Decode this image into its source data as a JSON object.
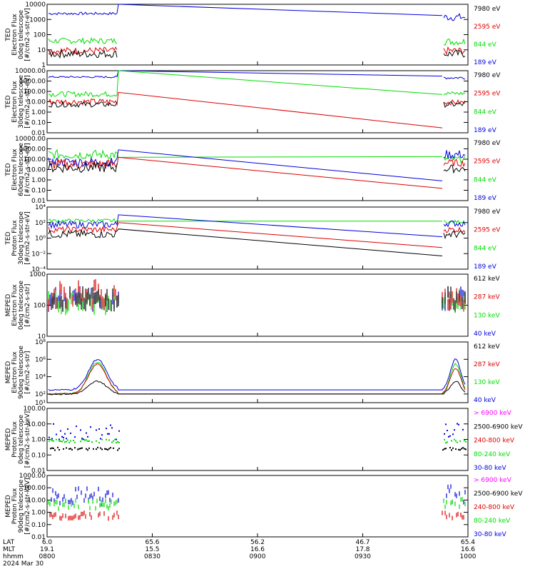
{
  "colors": {
    "black": "#000000",
    "red": "#dd0000",
    "green": "#00dd00",
    "blue": "#0000dd",
    "magenta": "#ff00ff"
  },
  "chart_data": [
    {
      "type": "line",
      "scale": "log",
      "ylabel_lines": [
        "TED",
        "Electron Flux",
        "0deg telescope",
        "[#/cm2-s-str-eV]"
      ],
      "ytick_labels": [
        "10000",
        "1000",
        "100",
        "10",
        "1"
      ],
      "ytick_values": [
        10000,
        1000,
        100,
        10,
        1
      ],
      "ylim": [
        1,
        10000
      ],
      "legend": [
        {
          "text": "7980 eV",
          "color": "black"
        },
        {
          "text": "2595 eV",
          "color": "red"
        },
        {
          "text": "844 eV",
          "color": "green"
        },
        {
          "text": "189 eV",
          "color": "blue"
        }
      ],
      "series": [
        {
          "color": "blue",
          "start": [
            2000,
            3000
          ],
          "jump": 10000,
          "slope_end": 1800,
          "end": [
            800,
            2500
          ],
          "noise": 0.5
        },
        {
          "color": "green",
          "start": [
            25,
            60
          ],
          "jump": null,
          "end": [
            20,
            60
          ],
          "noise": 0.6
        },
        {
          "color": "red",
          "start": [
            5,
            15
          ],
          "jump": null,
          "end": [
            5,
            15
          ],
          "noise": 0.5
        },
        {
          "color": "black",
          "start": [
            3,
            10
          ],
          "jump": null,
          "end": [
            3,
            10
          ],
          "noise": 0.5
        }
      ]
    },
    {
      "type": "line",
      "scale": "log",
      "ylabel_lines": [
        "TED",
        "Electron Flux",
        "30deg telescope",
        "[#/cm2-s-str-eV]"
      ],
      "ytick_labels": [
        "10000.00",
        "1000.00",
        "100.00",
        "10.00",
        "1.00",
        "0.10",
        "0.01"
      ],
      "ytick_values": [
        10000,
        1000,
        100,
        10,
        1,
        0.1,
        0.01
      ],
      "ylim": [
        0.01,
        10000
      ],
      "legend": [
        {
          "text": "7980 eV",
          "color": "black"
        },
        {
          "text": "2595 eV",
          "color": "red"
        },
        {
          "text": "844 eV",
          "color": "green"
        },
        {
          "text": "189 eV",
          "color": "blue"
        }
      ],
      "series": [
        {
          "color": "blue",
          "start": [
            2000,
            3000
          ],
          "jump": 10000,
          "slope_end": 3000,
          "end": [
            1500,
            3000
          ],
          "noise": 0.5
        },
        {
          "color": "green",
          "start": [
            30,
            100
          ],
          "jump": 10000,
          "slope_end": 50,
          "end": [
            40,
            100
          ],
          "noise": 0.5
        },
        {
          "color": "red",
          "start": [
            5,
            20
          ],
          "jump": 80,
          "slope_end": 0.03,
          "end": [
            5,
            15
          ],
          "noise": 0.5
        },
        {
          "color": "black",
          "start": [
            3,
            10
          ],
          "jump": null,
          "end": [
            3,
            10
          ],
          "noise": 0.5
        }
      ]
    },
    {
      "type": "line",
      "scale": "log",
      "ylabel_lines": [
        "TED",
        "Electron Flux",
        "60deg telescope",
        "[#/cm2-s-str-eV]"
      ],
      "ytick_labels": [
        "10000.00",
        "1000.00",
        "100.00",
        "10.00",
        "1.00",
        "0.10",
        "0.01"
      ],
      "ytick_values": [
        10000,
        1000,
        100,
        10,
        1,
        0.1,
        0.01
      ],
      "ylim": [
        0.01,
        10000
      ],
      "legend": [
        {
          "text": "7980 eV",
          "color": "black"
        },
        {
          "text": "2595 eV",
          "color": "red"
        },
        {
          "text": "844 eV",
          "color": "green"
        },
        {
          "text": "189 eV",
          "color": "blue"
        }
      ],
      "series": [
        {
          "color": "green",
          "start": [
            100,
            800
          ],
          "jump": null,
          "slope_from": 150,
          "slope_end": 180,
          "end": [
            50,
            200
          ],
          "noise": 0.4
        },
        {
          "color": "blue",
          "start": [
            20,
            150
          ],
          "jump": 800,
          "slope_end": 0.8,
          "end": [
            100,
            800
          ],
          "noise": 0.4
        },
        {
          "color": "red",
          "start": [
            10,
            100
          ],
          "jump": 150,
          "slope_end": 0.15,
          "end": [
            20,
            100
          ],
          "noise": 0.4
        },
        {
          "color": "black",
          "start": [
            5,
            50
          ],
          "jump": null,
          "end": [
            5,
            30
          ],
          "noise": 0.5
        }
      ]
    },
    {
      "type": "line",
      "scale": "log",
      "ylabel_lines": [
        "TED",
        "Proton Flux",
        "30deg telescope",
        "[#/cm2-s-str-eV]"
      ],
      "ytick_labels": [
        "10⁴",
        "10²",
        "10⁰",
        "10⁻²",
        "10⁻⁴"
      ],
      "ytick_values": [
        10000,
        100,
        1,
        0.01,
        0.0001
      ],
      "ylim": [
        0.0001,
        10000
      ],
      "legend": [
        {
          "text": "7980 eV",
          "color": "black"
        },
        {
          "text": "2595 eV",
          "color": "red"
        },
        {
          "text": "844 eV",
          "color": "green"
        },
        {
          "text": "189 eV",
          "color": "blue"
        }
      ],
      "series": [
        {
          "color": "green",
          "start": [
            100,
            300
          ],
          "jump": null,
          "slope_from": 150,
          "slope_end": 150,
          "end": [
            80,
            200
          ],
          "noise": 0.3
        },
        {
          "color": "blue",
          "start": [
            20,
            150
          ],
          "jump": 1000,
          "slope_end": 1.5,
          "end": [
            30,
            200
          ],
          "noise": 0.4
        },
        {
          "color": "red",
          "start": [
            5,
            30
          ],
          "jump": 100,
          "slope_end": 0.06,
          "end": [
            5,
            30
          ],
          "noise": 0.4
        },
        {
          "color": "black",
          "start": [
            1,
            10
          ],
          "jump": 15,
          "slope_end": 0.005,
          "end": [
            1,
            10
          ],
          "noise": 0.5
        }
      ]
    },
    {
      "type": "bar",
      "scale": "log",
      "ylabel_lines": [
        "MEPED",
        "Electron Flux",
        "0deg telescope",
        "[#/cm2-s-str]"
      ],
      "ytick_labels": [
        "1000",
        "100",
        "10"
      ],
      "ytick_values": [
        1000,
        100,
        10
      ],
      "ylim": [
        10,
        1000
      ],
      "legend": [
        {
          "text": "612 keV",
          "color": "black"
        },
        {
          "text": "287 keV",
          "color": "red"
        },
        {
          "text": "130 keV",
          "color": "green"
        },
        {
          "text": "40 keV",
          "color": "blue"
        }
      ],
      "series": [
        {
          "color": "blue",
          "start": [
            100,
            300
          ],
          "end": [
            100,
            300
          ],
          "noise": 0.3
        },
        {
          "color": "green",
          "start": [
            80,
            250
          ],
          "end": [
            80,
            250
          ],
          "noise": 0.3
        },
        {
          "color": "red",
          "start": [
            100,
            500
          ],
          "end": [
            100,
            300
          ],
          "noise": 0.3
        },
        {
          "color": "black",
          "start": [
            100,
            300
          ],
          "end": [
            100,
            300
          ],
          "noise": 0.3
        }
      ]
    },
    {
      "type": "line",
      "scale": "log",
      "ylabel_lines": [
        "MEPED",
        "Electron Flux",
        "90deg telescope",
        "[#/cm2-s-str]"
      ],
      "ytick_labels": [
        "10⁸",
        "10⁶",
        "10⁴",
        "10²",
        "10¹"
      ],
      "ytick_values": [
        100000000,
        1000000,
        10000,
        100,
        10
      ],
      "ylim": [
        10,
        100000000
      ],
      "legend": [
        {
          "text": "612 keV",
          "color": "black"
        },
        {
          "text": "287 keV",
          "color": "red"
        },
        {
          "text": "130 keV",
          "color": "green"
        },
        {
          "text": "40 keV",
          "color": "blue"
        }
      ],
      "series": [
        {
          "color": "blue",
          "peak": 1000000,
          "flat": 300,
          "end_peak": 1000000
        },
        {
          "color": "green",
          "peak": 500000,
          "flat": 100,
          "end_peak": 300000
        },
        {
          "color": "red",
          "peak": 300000,
          "flat": 100,
          "end_peak": 100000
        },
        {
          "color": "black",
          "peak": 3000,
          "flat": 100,
          "end_peak": 3000
        }
      ]
    },
    {
      "type": "scatter",
      "scale": "log",
      "ylabel_lines": [
        "MEPED",
        "Proton Flux",
        "0deg telescope",
        "[#/cm2-s-str-keV]"
      ],
      "ytick_labels": [
        "100.00",
        "10.00",
        "1.00",
        "0.10",
        "0.01"
      ],
      "ytick_values": [
        100,
        10,
        1,
        0.1,
        0.01
      ],
      "ylim": [
        0.01,
        100
      ],
      "legend": [
        {
          "text": "> 6900 keV",
          "color": "magenta"
        },
        {
          "text": "2500-6900 keV",
          "color": "black"
        },
        {
          "text": "240-800 keV",
          "color": "red"
        },
        {
          "text": "80-240 keV",
          "color": "green"
        },
        {
          "text": "30-80 keV",
          "color": "blue"
        }
      ],
      "series": [
        {
          "color": "blue",
          "start": [
            1,
            10
          ],
          "end": [
            1,
            15
          ],
          "noise": 0.3
        },
        {
          "color": "green",
          "start": [
            0.6,
            1
          ],
          "end": [
            0.6,
            1
          ],
          "noise": 0.1
        },
        {
          "color": "black",
          "start": [
            0.2,
            0.3
          ],
          "end": [
            0.2,
            0.3
          ],
          "noise": 0.1
        }
      ]
    },
    {
      "type": "bar",
      "scale": "log",
      "ylabel_lines": [
        "MEPED",
        "Proton Flux",
        "90deg telescope",
        "[#/cm2-s-str-keV]"
      ],
      "ytick_labels": [
        "1000.00",
        "100.00",
        "10.00",
        "1.00",
        "0.10",
        "0.01"
      ],
      "ytick_values": [
        1000,
        100,
        10,
        1,
        0.1,
        0.01
      ],
      "ylim": [
        0.01,
        1000
      ],
      "legend": [
        {
          "text": "> 6900 keV",
          "color": "magenta"
        },
        {
          "text": "2500-6900 keV",
          "color": "black"
        },
        {
          "text": "240-800 keV",
          "color": "red"
        },
        {
          "text": "80-240 keV",
          "color": "green"
        },
        {
          "text": "30-80 keV",
          "color": "blue"
        }
      ],
      "series": [
        {
          "color": "blue",
          "start": [
            5,
            100
          ],
          "end": [
            5,
            150
          ],
          "noise": 0.4
        },
        {
          "color": "green",
          "start": [
            2,
            10
          ],
          "end": [
            2,
            15
          ],
          "noise": 0.3
        },
        {
          "color": "red",
          "start": [
            0.3,
            1
          ],
          "end": [
            0.3,
            1
          ],
          "noise": 0.3
        }
      ]
    }
  ],
  "xaxis": {
    "row_labels": [
      "LAT",
      "MLT",
      "hhmm",
      "2024 Mar 30"
    ],
    "ticks": [
      {
        "lat": "6.0",
        "mlt": "19.1",
        "hhmm": "0800"
      },
      {
        "lat": "65.6",
        "mlt": "15.5",
        "hhmm": "0830"
      },
      {
        "lat": "56.2",
        "mlt": "16.6",
        "hhmm": "0900"
      },
      {
        "lat": "46.7",
        "mlt": "17.8",
        "hhmm": "0930"
      },
      {
        "lat": "65.4",
        "mlt": "16.6",
        "hhmm": "1000"
      }
    ]
  }
}
